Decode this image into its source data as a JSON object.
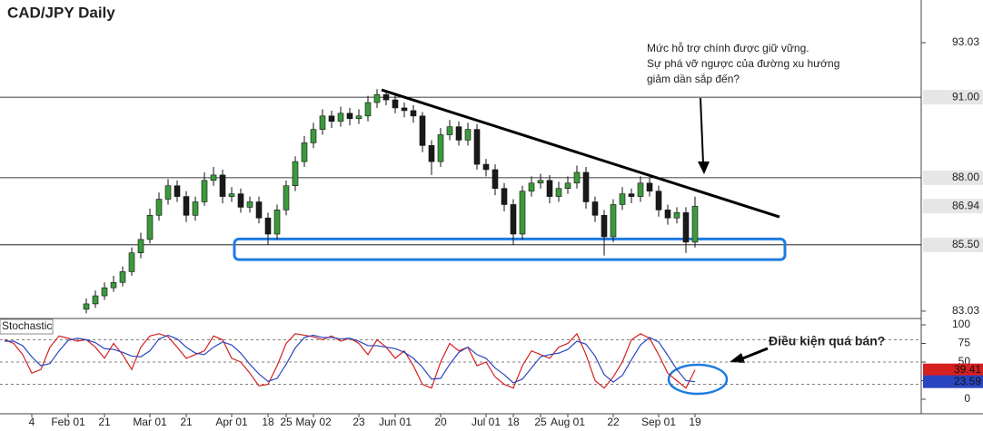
{
  "chart_data": [
    {
      "type": "candlestick",
      "title": "CAD/JPY Daily",
      "categories": [
        null,
        null,
        null,
        "4",
        null,
        null,
        null,
        "Feb 01",
        null,
        null,
        null,
        "21",
        null,
        null,
        null,
        null,
        "Mar 01",
        null,
        null,
        null,
        "21",
        null,
        null,
        null,
        null,
        "Apr 01",
        null,
        null,
        null,
        "18",
        null,
        "25",
        null,
        null,
        "May 02",
        null,
        null,
        null,
        null,
        "23",
        null,
        null,
        null,
        "Jun 01",
        null,
        null,
        null,
        null,
        "20",
        null,
        null,
        null,
        null,
        "Jul 01",
        null,
        null,
        "18",
        null,
        null,
        "25",
        null,
        null,
        "Aug 01",
        null,
        null,
        null,
        null,
        "22",
        null,
        null,
        null,
        null,
        "Sep 01",
        null,
        null,
        null,
        "19"
      ],
      "open": [
        null,
        null,
        null,
        null,
        null,
        null,
        null,
        null,
        null,
        83.1,
        83.3,
        83.6,
        83.9,
        84.1,
        84.5,
        85.2,
        85.7,
        86.6,
        87.2,
        87.7,
        87.3,
        86.6,
        87.1,
        87.9,
        88.1,
        87.3,
        87.4,
        86.9,
        87.1,
        86.5,
        85.9,
        86.8,
        87.7,
        88.6,
        89.3,
        89.8,
        90.3,
        90.1,
        90.4,
        90.2,
        90.3,
        90.8,
        91.1,
        90.9,
        90.6,
        90.5,
        90.3,
        89.2,
        88.6,
        89.6,
        89.9,
        89.4,
        89.8,
        88.5,
        88.3,
        87.6,
        87.0,
        85.9,
        87.5,
        87.8,
        87.9,
        87.3,
        87.6,
        87.8,
        88.2,
        87.1,
        86.6,
        85.8,
        87.0,
        87.4,
        87.3,
        87.8,
        87.5,
        86.8,
        86.5,
        86.7,
        85.6
      ],
      "high": [
        null,
        null,
        null,
        null,
        null,
        null,
        null,
        null,
        null,
        83.5,
        83.8,
        84.1,
        84.35,
        84.7,
        85.4,
        85.95,
        86.85,
        87.45,
        87.95,
        87.9,
        87.5,
        87.3,
        88.2,
        88.4,
        88.3,
        87.65,
        87.6,
        87.3,
        87.3,
        86.7,
        87.0,
        87.9,
        88.8,
        89.55,
        90.05,
        90.55,
        90.5,
        90.65,
        90.6,
        90.55,
        91.05,
        91.3,
        91.25,
        91.1,
        90.8,
        90.7,
        90.45,
        89.4,
        89.85,
        90.15,
        90.1,
        90.05,
        90.0,
        88.7,
        88.5,
        87.8,
        87.2,
        87.7,
        88.05,
        88.15,
        88.1,
        87.85,
        88.05,
        88.45,
        88.4,
        87.3,
        86.8,
        87.2,
        87.65,
        87.6,
        88.05,
        88.0,
        87.7,
        87.0,
        86.9,
        86.9,
        87.3
      ],
      "low": [
        null,
        null,
        null,
        null,
        null,
        null,
        null,
        null,
        null,
        82.95,
        83.15,
        83.45,
        83.75,
        83.95,
        84.35,
        85.0,
        85.55,
        86.4,
        87.0,
        87.1,
        86.35,
        86.4,
        86.95,
        87.7,
        87.05,
        87.1,
        86.7,
        86.7,
        86.3,
        85.5,
        85.7,
        86.6,
        87.5,
        88.4,
        89.1,
        89.6,
        89.85,
        89.9,
        89.95,
        90.0,
        90.1,
        90.6,
        90.7,
        90.4,
        90.25,
        90.05,
        88.95,
        88.1,
        88.4,
        89.4,
        89.2,
        89.2,
        88.3,
        88.05,
        87.35,
        86.75,
        85.5,
        85.7,
        87.3,
        87.6,
        87.05,
        87.1,
        87.4,
        87.6,
        86.85,
        86.35,
        85.1,
        85.6,
        86.8,
        87.05,
        87.1,
        87.3,
        86.55,
        86.25,
        86.3,
        85.2,
        85.4
      ],
      "close": [
        null,
        null,
        null,
        null,
        null,
        null,
        null,
        null,
        null,
        83.3,
        83.6,
        83.9,
        84.1,
        84.5,
        85.2,
        85.7,
        86.6,
        87.2,
        87.7,
        87.3,
        86.6,
        87.1,
        87.9,
        88.1,
        87.3,
        87.4,
        86.9,
        87.1,
        86.5,
        85.9,
        86.8,
        87.7,
        88.6,
        89.3,
        89.8,
        90.3,
        90.1,
        90.4,
        90.2,
        90.3,
        90.8,
        91.1,
        90.9,
        90.6,
        90.5,
        90.3,
        89.2,
        88.6,
        89.6,
        89.9,
        89.4,
        89.8,
        88.5,
        88.3,
        87.6,
        87.0,
        85.9,
        87.5,
        87.8,
        87.9,
        87.3,
        87.6,
        87.8,
        88.2,
        87.1,
        86.6,
        85.8,
        87.0,
        87.4,
        87.3,
        87.8,
        87.5,
        86.8,
        86.5,
        86.7,
        85.6,
        86.94
      ],
      "up_color": "#3c9a3c",
      "down_color": "#1a1a1a",
      "ylim": [
        82.79,
        94.62
      ],
      "yticks": [
        93.03,
        83.03
      ],
      "levels": [
        {
          "value": 91,
          "label": "91.00"
        },
        {
          "value": 88,
          "label": "88.00"
        },
        {
          "value": 85.5,
          "label": "85.50"
        }
      ],
      "trendline": [
        91.27,
        86.54
      ],
      "trendline_color": "#000000",
      "support_zone": [
        84.95,
        85.72
      ],
      "support_color": "#1e7be0",
      "annotation": [
        "Mức hỗ trợ chính được giữ vững.",
        "Sự phá vỡ ngược của đường xu hướng",
        "giảm dần sắp đến?"
      ]
    },
    {
      "type": "line",
      "title": "Stochastic",
      "ylim": [
        -18.3,
        107.3
      ],
      "yticks": [
        100,
        75,
        50,
        25,
        0
      ],
      "levels": [
        80,
        50,
        20
      ],
      "annotation": "Điều kiện quá bán?",
      "series": [
        {
          "color": "#d62020",
          "values": [
            80,
            75,
            60,
            35,
            40,
            70,
            85,
            82,
            78,
            80,
            70,
            55,
            75,
            60,
            40,
            70,
            85,
            88,
            84,
            70,
            55,
            60,
            65,
            85,
            80,
            55,
            50,
            35,
            18,
            20,
            45,
            75,
            88,
            86,
            84,
            80,
            85,
            78,
            82,
            75,
            60,
            80,
            70,
            55,
            65,
            45,
            20,
            15,
            50,
            75,
            65,
            70,
            45,
            50,
            30,
            20,
            15,
            45,
            65,
            60,
            55,
            70,
            75,
            88,
            60,
            25,
            15,
            30,
            50,
            80,
            88,
            82,
            60,
            35,
            25,
            15,
            39.41
          ]
        },
        {
          "color": "#2a45c0",
          "values": [
            78,
            78,
            72,
            57,
            45,
            48,
            65,
            79,
            82,
            80,
            76,
            68,
            67,
            63,
            58,
            57,
            65,
            81,
            86,
            81,
            70,
            62,
            60,
            70,
            77,
            73,
            62,
            47,
            34,
            24,
            28,
            47,
            69,
            83,
            86,
            83,
            83,
            81,
            82,
            78,
            72,
            72,
            70,
            68,
            63,
            55,
            43,
            27,
            28,
            47,
            63,
            70,
            60,
            55,
            42,
            33,
            22,
            27,
            42,
            57,
            60,
            62,
            67,
            78,
            74,
            58,
            33,
            23,
            32,
            53,
            73,
            83,
            77,
            59,
            40,
            25,
            23.59
          ]
        }
      ]
    }
  ]
}
